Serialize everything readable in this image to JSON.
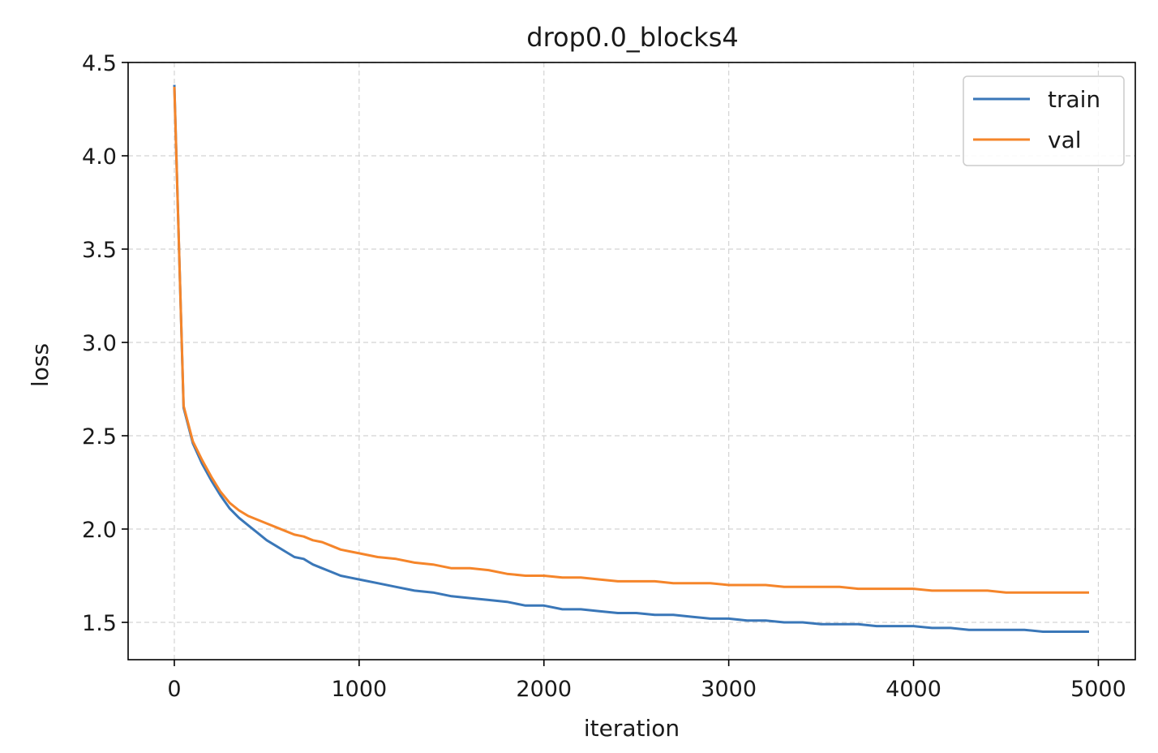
{
  "chart_data": {
    "type": "line",
    "title": "drop0.0_blocks4",
    "xlabel": "iteration",
    "ylabel": "loss",
    "xlim": [
      -250,
      5200
    ],
    "ylim": [
      1.3,
      4.5
    ],
    "xticks": [
      0,
      1000,
      2000,
      3000,
      4000,
      5000
    ],
    "xtick_labels": [
      "0",
      "1000",
      "2000",
      "3000",
      "4000",
      "5000"
    ],
    "yticks": [
      1.5,
      2.0,
      2.5,
      3.0,
      3.5,
      4.0,
      4.5
    ],
    "ytick_labels": [
      "1.5",
      "2.0",
      "2.5",
      "3.0",
      "3.5",
      "4.0",
      "4.5"
    ],
    "grid": true,
    "legend_position": "top-right",
    "series": [
      {
        "name": "train",
        "color": "#3a77b8",
        "points": [
          [
            0,
            4.38
          ],
          [
            50,
            2.65
          ],
          [
            100,
            2.46
          ],
          [
            150,
            2.35
          ],
          [
            200,
            2.26
          ],
          [
            250,
            2.18
          ],
          [
            300,
            2.11
          ],
          [
            350,
            2.06
          ],
          [
            400,
            2.02
          ],
          [
            450,
            1.98
          ],
          [
            500,
            1.94
          ],
          [
            550,
            1.91
          ],
          [
            600,
            1.88
          ],
          [
            650,
            1.85
          ],
          [
            700,
            1.84
          ],
          [
            750,
            1.81
          ],
          [
            800,
            1.79
          ],
          [
            850,
            1.77
          ],
          [
            900,
            1.75
          ],
          [
            950,
            1.74
          ],
          [
            1000,
            1.73
          ],
          [
            1100,
            1.71
          ],
          [
            1200,
            1.69
          ],
          [
            1300,
            1.67
          ],
          [
            1400,
            1.66
          ],
          [
            1500,
            1.64
          ],
          [
            1600,
            1.63
          ],
          [
            1700,
            1.62
          ],
          [
            1800,
            1.61
          ],
          [
            1900,
            1.59
          ],
          [
            2000,
            1.59
          ],
          [
            2100,
            1.57
          ],
          [
            2200,
            1.57
          ],
          [
            2300,
            1.56
          ],
          [
            2400,
            1.55
          ],
          [
            2500,
            1.55
          ],
          [
            2600,
            1.54
          ],
          [
            2700,
            1.54
          ],
          [
            2800,
            1.53
          ],
          [
            2900,
            1.52
          ],
          [
            3000,
            1.52
          ],
          [
            3100,
            1.51
          ],
          [
            3200,
            1.51
          ],
          [
            3300,
            1.5
          ],
          [
            3400,
            1.5
          ],
          [
            3500,
            1.49
          ],
          [
            3600,
            1.49
          ],
          [
            3700,
            1.49
          ],
          [
            3800,
            1.48
          ],
          [
            3900,
            1.48
          ],
          [
            4000,
            1.48
          ],
          [
            4100,
            1.47
          ],
          [
            4200,
            1.47
          ],
          [
            4300,
            1.46
          ],
          [
            4400,
            1.46
          ],
          [
            4500,
            1.46
          ],
          [
            4600,
            1.46
          ],
          [
            4700,
            1.45
          ],
          [
            4800,
            1.45
          ],
          [
            4900,
            1.45
          ],
          [
            4950,
            1.45
          ]
        ]
      },
      {
        "name": "val",
        "color": "#f5852a",
        "points": [
          [
            0,
            4.37
          ],
          [
            50,
            2.66
          ],
          [
            100,
            2.47
          ],
          [
            150,
            2.37
          ],
          [
            200,
            2.28
          ],
          [
            250,
            2.2
          ],
          [
            300,
            2.14
          ],
          [
            350,
            2.1
          ],
          [
            400,
            2.07
          ],
          [
            450,
            2.05
          ],
          [
            500,
            2.03
          ],
          [
            550,
            2.01
          ],
          [
            600,
            1.99
          ],
          [
            650,
            1.97
          ],
          [
            700,
            1.96
          ],
          [
            750,
            1.94
          ],
          [
            800,
            1.93
          ],
          [
            850,
            1.91
          ],
          [
            900,
            1.89
          ],
          [
            950,
            1.88
          ],
          [
            1000,
            1.87
          ],
          [
            1100,
            1.85
          ],
          [
            1200,
            1.84
          ],
          [
            1300,
            1.82
          ],
          [
            1400,
            1.81
          ],
          [
            1500,
            1.79
          ],
          [
            1600,
            1.79
          ],
          [
            1700,
            1.78
          ],
          [
            1800,
            1.76
          ],
          [
            1900,
            1.75
          ],
          [
            2000,
            1.75
          ],
          [
            2100,
            1.74
          ],
          [
            2200,
            1.74
          ],
          [
            2300,
            1.73
          ],
          [
            2400,
            1.72
          ],
          [
            2500,
            1.72
          ],
          [
            2600,
            1.72
          ],
          [
            2700,
            1.71
          ],
          [
            2800,
            1.71
          ],
          [
            2900,
            1.71
          ],
          [
            3000,
            1.7
          ],
          [
            3100,
            1.7
          ],
          [
            3200,
            1.7
          ],
          [
            3300,
            1.69
          ],
          [
            3400,
            1.69
          ],
          [
            3500,
            1.69
          ],
          [
            3600,
            1.69
          ],
          [
            3700,
            1.68
          ],
          [
            3800,
            1.68
          ],
          [
            3900,
            1.68
          ],
          [
            4000,
            1.68
          ],
          [
            4100,
            1.67
          ],
          [
            4200,
            1.67
          ],
          [
            4300,
            1.67
          ],
          [
            4400,
            1.67
          ],
          [
            4500,
            1.66
          ],
          [
            4600,
            1.66
          ],
          [
            4700,
            1.66
          ],
          [
            4800,
            1.66
          ],
          [
            4900,
            1.66
          ],
          [
            4950,
            1.66
          ]
        ]
      }
    ]
  }
}
